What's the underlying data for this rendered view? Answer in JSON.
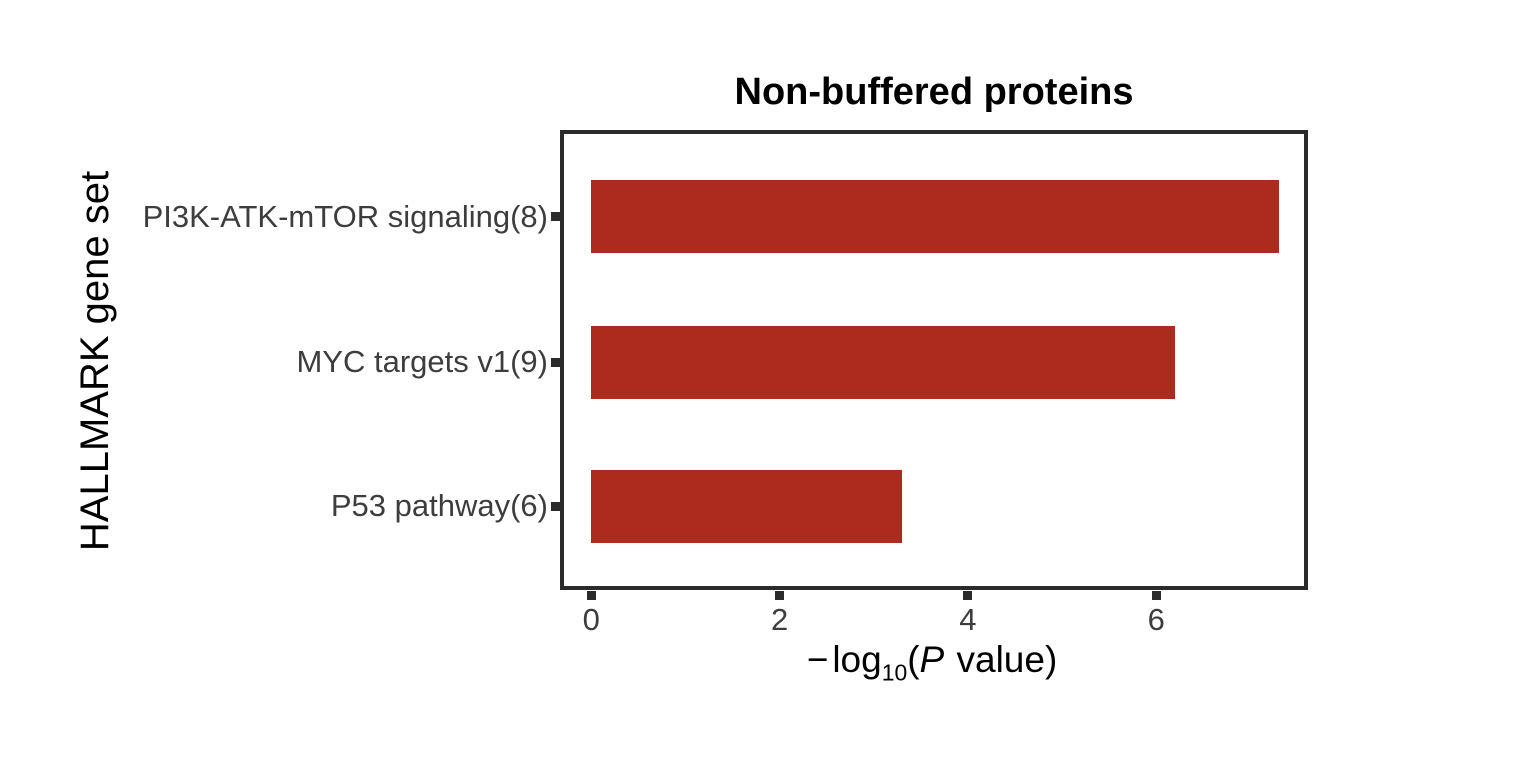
{
  "chart_data": {
    "type": "bar",
    "orientation": "horizontal",
    "title": "Non-buffered proteins",
    "xlabel": "−log10(P value)",
    "xlabel_parts": {
      "minus": "−",
      "log": "log",
      "subscript": "10",
      "open_paren": "(",
      "p_italic": "P",
      "suffix": " value)"
    },
    "ylabel": "HALLMARK gene set",
    "categories": [
      "PI3K-ATK-mTOR signaling(8)",
      "MYC targets v1(9)",
      "P53 pathway(6)"
    ],
    "values": [
      7.3,
      6.2,
      3.3
    ],
    "xticks": [
      0,
      2,
      4,
      6
    ],
    "xlim": [
      -0.29,
      7.57
    ],
    "grid": false,
    "legend": false,
    "colors": {
      "bar": "#AD2A1F",
      "frame": "#2B2B2B",
      "axis_text": "#3D3D3D",
      "title_text": "#000000"
    }
  }
}
